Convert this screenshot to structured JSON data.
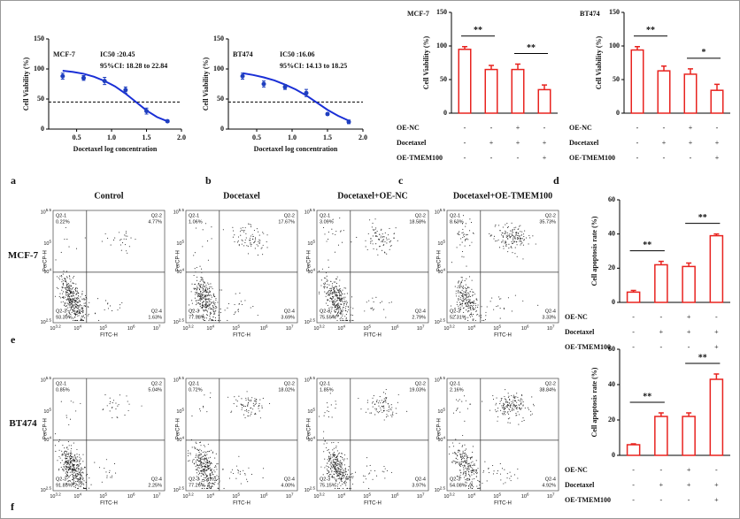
{
  "panel_labels": [
    "a",
    "b",
    "c",
    "d",
    "e",
    "f"
  ],
  "chart_data": [
    {
      "type": "scatter",
      "annotations": [
        "MCF-7",
        "IC50 :20.45",
        "95%CI: 18.28 to 22.84"
      ],
      "xlabel": "Docetaxel log concentration",
      "ylabel": "Cell Viability (%)",
      "x": [
        0.3,
        0.6,
        0.9,
        1.2,
        1.5,
        1.8
      ],
      "values": [
        88,
        85,
        80,
        65,
        30,
        13
      ],
      "errors": [
        5,
        4,
        6,
        5,
        5,
        2
      ],
      "color": "#1f3fbf",
      "fit": {
        "x": [
          0.3,
          0.45,
          0.6,
          0.75,
          0.9,
          1.05,
          1.2,
          1.35,
          1.5,
          1.65,
          1.8
        ],
        "values": [
          97,
          95,
          92,
          87,
          80,
          71,
          59,
          45,
          31,
          20,
          13
        ],
        "color": "#1a2fd6"
      },
      "reference_line": 45,
      "xlim": [
        0.1,
        2.0
      ],
      "xticks": [
        0.5,
        {
          "value": 1,
          "label": "1.0"
        },
        1.5,
        {
          "value": 2,
          "label": "2.0"
        }
      ],
      "ylim": [
        0,
        150
      ],
      "yticks": [
        0,
        50,
        100,
        150
      ]
    },
    {
      "type": "scatter",
      "annotations": [
        "BT474",
        "IC50 :16.06",
        "95%CI: 14.13 to 18.25"
      ],
      "xlabel": "Docetaxel log concentration",
      "ylabel": "Cell Viability (%)",
      "x": [
        0.3,
        0.6,
        0.9,
        1.2,
        1.5,
        1.8
      ],
      "values": [
        88,
        75,
        70,
        60,
        25,
        12
      ],
      "errors": [
        5,
        5,
        4,
        6,
        2,
        3
      ],
      "color": "#1f3fbf",
      "fit": {
        "x": [
          0.3,
          0.45,
          0.6,
          0.75,
          0.9,
          1.05,
          1.2,
          1.35,
          1.5,
          1.65,
          1.8
        ],
        "values": [
          93,
          90,
          86,
          81,
          74,
          66,
          56,
          44,
          32,
          22,
          14
        ],
        "color": "#1a2fd6"
      },
      "reference_line": 45,
      "xlim": [
        0.1,
        2.0
      ],
      "xticks": [
        0.5,
        {
          "value": 1,
          "label": "1.0"
        },
        1.5,
        {
          "value": 2,
          "label": "2.0"
        }
      ],
      "ylim": [
        0,
        150
      ],
      "yticks": [
        0,
        50,
        100,
        150
      ]
    },
    {
      "type": "bar",
      "title": "MCF-7",
      "ylabel": "Cell Viability (%)",
      "values": [
        95,
        65,
        65,
        35
      ],
      "errors": [
        4,
        6,
        8,
        7
      ],
      "color": "#e8231f",
      "ylim": [
        0,
        150
      ],
      "yticks": [
        0,
        50,
        100,
        150
      ],
      "conditions": [
        {
          "name": "OE-NC",
          "values": [
            "-",
            "-",
            "+",
            "-"
          ]
        },
        {
          "name": "Docetaxel",
          "values": [
            "-",
            "+",
            "+",
            "+"
          ]
        },
        {
          "name": "OE-TMEM100",
          "values": [
            "-",
            "-",
            "-",
            "+"
          ]
        }
      ],
      "significance": [
        {
          "label": "**",
          "pair": [
            0,
            1
          ]
        },
        {
          "label": "**",
          "pair": [
            2,
            3
          ]
        }
      ]
    },
    {
      "type": "bar",
      "title": "BT474",
      "ylabel": "Cell Viability (%)",
      "values": [
        94,
        63,
        58,
        34
      ],
      "errors": [
        5,
        7,
        8,
        9
      ],
      "color": "#e8231f",
      "ylim": [
        0,
        150
      ],
      "yticks": [
        0,
        50,
        100,
        150
      ],
      "conditions": [
        {
          "name": "OE-NC",
          "values": [
            "-",
            "-",
            "+",
            "-"
          ]
        },
        {
          "name": "Docetaxel",
          "values": [
            "-",
            "+",
            "+",
            "+"
          ]
        },
        {
          "name": "OE-TMEM100",
          "values": [
            "-",
            "-",
            "-",
            "+"
          ]
        }
      ],
      "significance": [
        {
          "label": "**",
          "pair": [
            0,
            1
          ]
        },
        {
          "label": "*",
          "pair": [
            2,
            3
          ]
        }
      ]
    },
    {
      "type": "bar",
      "ylabel": "Cell apoptosis rate (%)",
      "values": [
        6,
        22,
        21,
        39
      ],
      "errors": [
        1,
        2,
        2,
        1
      ],
      "color": "#e8231f",
      "ylim": [
        0,
        60
      ],
      "yticks": [
        0,
        20,
        40,
        60
      ],
      "conditions": [
        {
          "name": "OE-NC",
          "values": [
            "-",
            "-",
            "+",
            "-"
          ]
        },
        {
          "name": "Docetaxel",
          "values": [
            "-",
            "+",
            "+",
            "+"
          ]
        },
        {
          "name": "OE-TMEM100",
          "values": [
            "-",
            "-",
            "-",
            "+"
          ]
        }
      ],
      "significance": [
        {
          "label": "**",
          "pair": [
            0,
            1
          ]
        },
        {
          "label": "**",
          "pair": [
            2,
            3
          ]
        }
      ]
    },
    {
      "type": "bar",
      "ylabel": "Cell apoptosis rate (%)",
      "values": [
        6,
        22,
        22,
        43
      ],
      "errors": [
        0.5,
        2,
        2,
        3
      ],
      "color": "#e8231f",
      "ylim": [
        0,
        60
      ],
      "yticks": [
        0,
        20,
        40,
        60
      ],
      "conditions": [
        {
          "name": "OE-NC",
          "values": [
            "-",
            "-",
            "+",
            "-"
          ]
        },
        {
          "name": "Docetaxel",
          "values": [
            "-",
            "+",
            "+",
            "+"
          ]
        },
        {
          "name": "OE-TMEM100",
          "values": [
            "-",
            "-",
            "-",
            "+"
          ]
        }
      ],
      "significance": [
        {
          "label": "**",
          "pair": [
            0,
            1
          ]
        },
        {
          "label": "**",
          "pair": [
            2,
            3
          ]
        }
      ]
    }
  ],
  "flow_cytometry": {
    "columns": [
      "Control",
      "Docetaxel",
      "Docetaxel+OE-NC",
      "Docetaxel+OE-TMEM100"
    ],
    "x_label": "FITC-H",
    "y_label": "PerCP-H",
    "quadrant_names": [
      "Q2-1",
      "Q2-2",
      "Q2-3",
      "Q2-4"
    ],
    "x_ticks": [
      {
        "base": "10",
        "exp": "3.2"
      },
      {
        "base": "10",
        "exp": "4"
      },
      {
        "base": "10",
        "exp": "5"
      },
      {
        "base": "10",
        "exp": "6"
      },
      {
        "base": "10",
        "exp": "7"
      }
    ],
    "y_ticks": [
      {
        "base": "10",
        "exp": "2.5"
      },
      {
        "base": "10",
        "exp": "4"
      },
      {
        "base": "10",
        "exp": "5"
      },
      {
        "base": "10",
        "exp": "5.5"
      }
    ],
    "rows": [
      {
        "label": "MCF-7",
        "plots": [
          [
            "0.22%",
            "4.77%",
            "93.39%",
            "1.63%"
          ],
          [
            "1.06%",
            "17.67%",
            "77.58%",
            "3.69%"
          ],
          [
            "3.09%",
            "18.58%",
            "75.55%",
            "2.79%"
          ],
          [
            "8.63%",
            "35.73%",
            "52.31%",
            "3.33%"
          ]
        ]
      },
      {
        "label": "BT474",
        "plots": [
          [
            "0.85%",
            "5.04%",
            "91.85%",
            "2.25%"
          ],
          [
            "0.72%",
            "18.02%",
            "77.26%",
            "4.00%"
          ],
          [
            "1.85%",
            "19.03%",
            "75.15%",
            "3.97%"
          ],
          [
            "2.16%",
            "38.84%",
            "54.08%",
            "4.92%"
          ]
        ]
      }
    ]
  }
}
